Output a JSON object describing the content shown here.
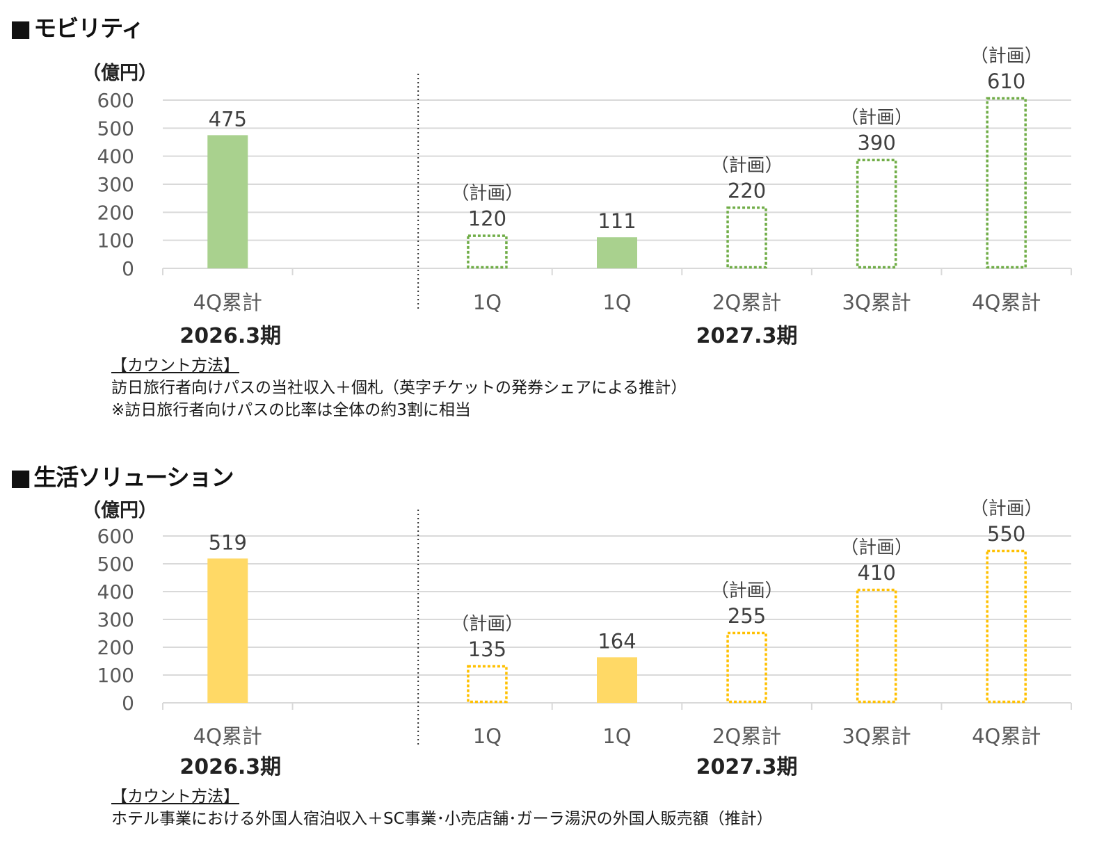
{
  "sections": [
    {
      "id": "mobility",
      "title_marker": "■",
      "title": "モビリティ",
      "unit": "（億円）",
      "note_title": "【カウント方法】",
      "notes": [
        "訪日旅行者向けパスの当社収入＋個札（英字チケットの発券シェアによる推計）",
        "※訪日旅行者向けパスの比率は全体の約3割に相当"
      ],
      "colors": {
        "fill": "#a9d18e",
        "outline": "#70ad47"
      }
    },
    {
      "id": "life",
      "title_marker": "■",
      "title": "生活ソリューション",
      "unit": "（億円）",
      "note_title": "【カウント方法】",
      "notes": [
        "ホテル事業における外国人宿泊収入＋SC事業･小売店舗･ガーラ湯沢の外国人販売額（推計）"
      ],
      "colors": {
        "fill": "#ffd966",
        "outline": "#ffc000"
      }
    }
  ],
  "chart_data": [
    {
      "type": "bar",
      "section": "mobility",
      "title": "モビリティ",
      "ylabel": "（億円）",
      "ylim": [
        0,
        600
      ],
      "yticks": [
        0,
        100,
        200,
        300,
        400,
        500,
        600
      ],
      "grid": true,
      "categories": [
        "4Q累計",
        "",
        "1Q",
        "1Q",
        "2Q累計",
        "3Q累計",
        "4Q累計"
      ],
      "groups": [
        {
          "label": "2026.3期",
          "categories": [
            0,
            1
          ]
        },
        {
          "label": "2027.3期",
          "categories": [
            2,
            3,
            4,
            5,
            6
          ]
        }
      ],
      "values": [
        475,
        null,
        120,
        111,
        220,
        390,
        610
      ],
      "kind": [
        "actual",
        null,
        "plan",
        "actual",
        "plan",
        "plan",
        "plan"
      ],
      "plan_label": "（計画）",
      "colors": {
        "fill": "#a9d18e",
        "outline": "#70ad47"
      }
    },
    {
      "type": "bar",
      "section": "life",
      "title": "生活ソリューション",
      "ylabel": "（億円）",
      "ylim": [
        0,
        600
      ],
      "yticks": [
        0,
        100,
        200,
        300,
        400,
        500,
        600
      ],
      "grid": true,
      "categories": [
        "4Q累計",
        "",
        "1Q",
        "1Q",
        "2Q累計",
        "3Q累計",
        "4Q累計"
      ],
      "groups": [
        {
          "label": "2026.3期",
          "categories": [
            0,
            1
          ]
        },
        {
          "label": "2027.3期",
          "categories": [
            2,
            3,
            4,
            5,
            6
          ]
        }
      ],
      "values": [
        519,
        null,
        135,
        164,
        255,
        410,
        550
      ],
      "kind": [
        "actual",
        null,
        "plan",
        "actual",
        "plan",
        "plan",
        "plan"
      ],
      "plan_label": "（計画）",
      "colors": {
        "fill": "#ffd966",
        "outline": "#ffc000"
      }
    }
  ]
}
